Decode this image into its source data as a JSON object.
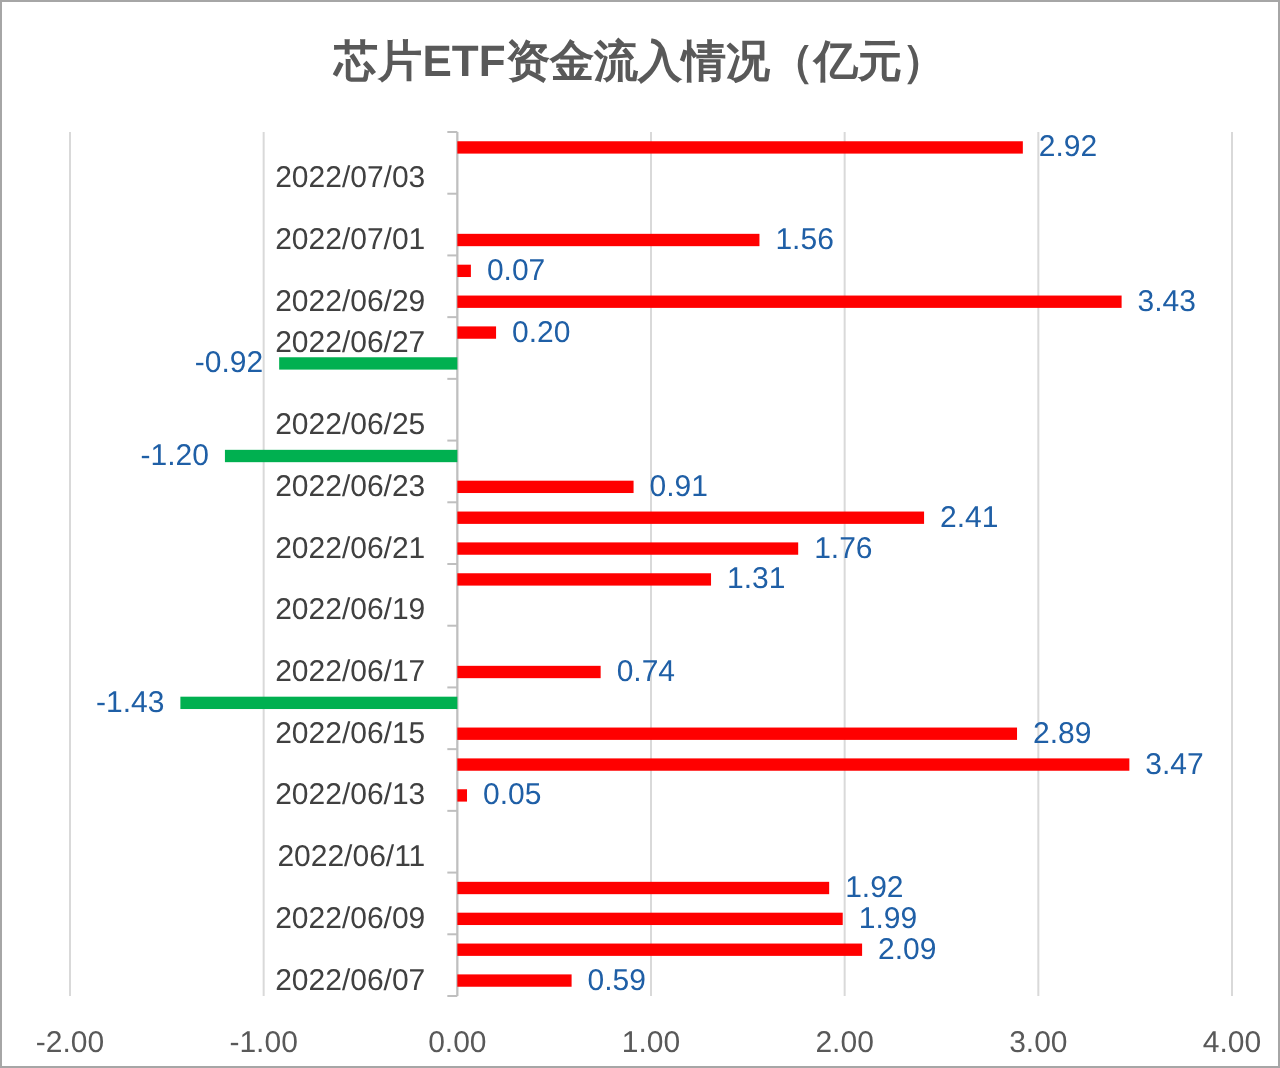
{
  "chart_data": {
    "type": "bar",
    "orientation": "horizontal",
    "title": "芯片ETF资金流入情况（亿元）",
    "categories": [
      null,
      "2022/07/03",
      null,
      "2022/07/01",
      null,
      "2022/06/29",
      null,
      "2022/06/27",
      null,
      "2022/06/25",
      null,
      "2022/06/23",
      null,
      "2022/06/21",
      null,
      "2022/06/19",
      null,
      "2022/06/17",
      null,
      "2022/06/15",
      null,
      "2022/06/13",
      null,
      "2022/06/11",
      null,
      "2022/06/09",
      null,
      "2022/06/07"
    ],
    "values": [
      2.92,
      null,
      null,
      1.56,
      0.07,
      3.43,
      0.2,
      -0.92,
      null,
      null,
      -1.2,
      0.91,
      2.41,
      1.76,
      1.31,
      null,
      null,
      0.74,
      -1.43,
      2.89,
      3.47,
      0.05,
      null,
      null,
      1.92,
      1.99,
      2.09,
      0.59
    ],
    "colors": [
      "#ff0000",
      null,
      null,
      "#ff0000",
      "#ff0000",
      "#ff0000",
      "#ff0000",
      "#00b050",
      null,
      null,
      "#00b050",
      "#ff0000",
      "#ff0000",
      "#ff0000",
      "#ff0000",
      null,
      null,
      "#ff0000",
      "#00b050",
      "#ff0000",
      "#ff0000",
      "#ff0000",
      null,
      null,
      "#ff0000",
      "#ff0000",
      "#ff0000",
      "#ff0000"
    ],
    "value_labels": [
      "2.92",
      null,
      null,
      "1.56",
      "0.07",
      "3.43",
      "0.20",
      "-0.92",
      null,
      null,
      "-1.20",
      "0.91",
      "2.41",
      "1.76",
      "1.31",
      null,
      null,
      "0.74",
      "-1.43",
      "2.89",
      "3.47",
      "0.05",
      null,
      null,
      "1.92",
      "1.99",
      "2.09",
      "0.59"
    ],
    "xlim": [
      -2,
      4
    ],
    "xticks": [
      {
        "value": -2,
        "label": "-2.00"
      },
      {
        "value": -1,
        "label": "-1.00"
      },
      {
        "value": 0,
        "label": "0.00"
      },
      {
        "value": 1,
        "label": "1.00"
      },
      {
        "value": 2,
        "label": "2.00"
      },
      {
        "value": 3,
        "label": "3.00"
      },
      {
        "value": 4,
        "label": "4.00"
      }
    ],
    "grid": "x"
  }
}
